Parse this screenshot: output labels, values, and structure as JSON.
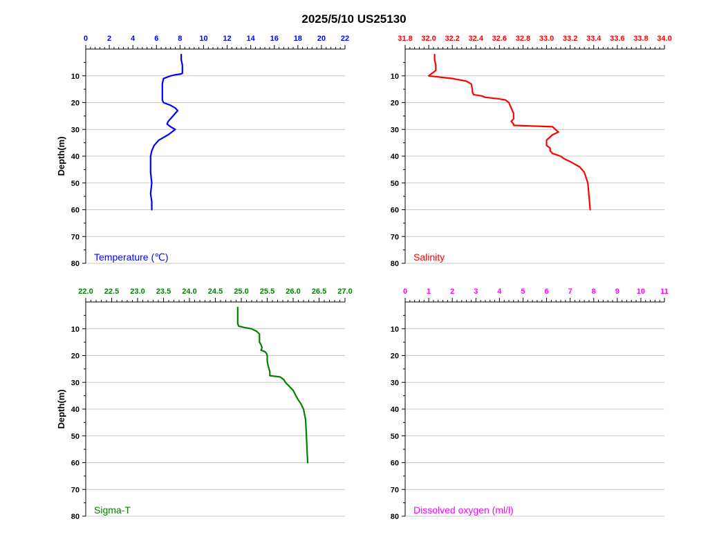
{
  "title": "2025/5/10  US25130",
  "chart_data": [
    {
      "type": "line",
      "label": "Temperature (℃)",
      "color": "#0000ff",
      "ylabel": "Depth(m)",
      "y_inverted": true,
      "ylim": [
        0,
        80
      ],
      "y_ticks": [
        10,
        20,
        30,
        40,
        50,
        60,
        70,
        80
      ],
      "xlim": [
        0,
        22
      ],
      "x_ticks": [
        0,
        2,
        4,
        6,
        8,
        10,
        12,
        14,
        16,
        18,
        20,
        22
      ],
      "grid": true,
      "series": [
        {
          "x": [
            8.1,
            8.1,
            8.2,
            8.2,
            8.2,
            8.1,
            7.6,
            7.2,
            6.6,
            6.5,
            6.5,
            6.5,
            6.6,
            7.2,
            7.6,
            7.8,
            7.6,
            7.4,
            7.2,
            7.0,
            6.9,
            7.2,
            7.6,
            7.0,
            6.2,
            5.8,
            5.6,
            5.5,
            5.5,
            5.5,
            5.6,
            5.5,
            5.6,
            5.6
          ],
          "y": [
            2,
            4,
            6,
            8,
            9,
            9.3,
            9.6,
            10,
            11,
            13,
            16,
            19,
            20,
            21,
            22,
            23,
            24,
            25,
            26,
            27,
            28,
            29,
            30,
            32,
            34,
            36,
            38,
            40,
            43,
            46,
            50,
            54,
            57,
            60
          ]
        }
      ]
    },
    {
      "type": "line",
      "label": "Salinity",
      "color": "#ff0000",
      "ylabel": "",
      "y_inverted": true,
      "ylim": [
        0,
        80
      ],
      "y_ticks": [
        10,
        20,
        30,
        40,
        50,
        60,
        70,
        80
      ],
      "xlim": [
        31.8,
        34.0
      ],
      "x_ticks": [
        31.8,
        32.0,
        32.2,
        32.4,
        32.6,
        32.8,
        33.0,
        33.2,
        33.4,
        33.6,
        33.8,
        34.0
      ],
      "grid": true,
      "series": [
        {
          "x": [
            32.05,
            32.05,
            32.06,
            32.06,
            32.03,
            32.0,
            32.2,
            32.32,
            32.36,
            32.37,
            32.37,
            32.38,
            32.45,
            32.48,
            32.58,
            32.65,
            32.68,
            32.7,
            32.72,
            32.72,
            32.7,
            32.72,
            32.72,
            33.05,
            33.1,
            33.05,
            33.0,
            33.0,
            33.03,
            33.03,
            33.05,
            33.12,
            33.15,
            33.2,
            33.28,
            33.32,
            33.35,
            33.36,
            33.37
          ],
          "y": [
            2,
            4,
            6,
            8,
            9,
            10,
            11,
            12,
            13,
            15,
            16,
            17,
            17.5,
            18,
            18.5,
            19,
            20,
            22,
            24,
            26,
            27,
            28,
            28.5,
            29,
            31,
            32,
            34,
            36,
            37,
            38,
            39,
            40,
            41,
            42,
            44,
            46,
            50,
            55,
            60
          ]
        }
      ]
    },
    {
      "type": "line",
      "label": "Sigma-T",
      "color": "#008000",
      "ylabel": "Depth(m)",
      "y_inverted": true,
      "ylim": [
        0,
        80
      ],
      "y_ticks": [
        10,
        20,
        30,
        40,
        50,
        60,
        70,
        80
      ],
      "xlim": [
        22.0,
        27.0
      ],
      "x_ticks": [
        22.0,
        22.5,
        23.0,
        23.5,
        24.0,
        24.5,
        25.0,
        25.5,
        26.0,
        26.5,
        27.0
      ],
      "grid": true,
      "series": [
        {
          "x": [
            24.93,
            24.93,
            24.93,
            24.93,
            24.95,
            25.05,
            25.2,
            25.3,
            25.35,
            25.35,
            25.38,
            25.4,
            25.38,
            25.45,
            25.48,
            25.5,
            25.5,
            25.52,
            25.55,
            25.55,
            25.75,
            25.82,
            25.85,
            26.0,
            26.08,
            26.15,
            26.2,
            26.22,
            26.24,
            26.25,
            26.26,
            26.27,
            26.28
          ],
          "y": [
            2,
            4,
            6,
            8,
            9,
            9.5,
            10,
            11,
            12,
            15,
            16,
            17,
            18,
            18.5,
            19,
            20,
            22,
            24,
            26,
            27.5,
            28,
            29,
            30,
            33,
            36,
            38,
            40,
            42,
            44,
            48,
            52,
            56,
            60
          ]
        }
      ]
    },
    {
      "type": "line",
      "label": "Dissolved oxygen (ml/l)",
      "color": "#ff00ff",
      "ylabel": "",
      "y_inverted": true,
      "ylim": [
        0,
        80
      ],
      "y_ticks": [
        10,
        20,
        30,
        40,
        50,
        60,
        70,
        80
      ],
      "xlim": [
        0,
        11
      ],
      "x_ticks": [
        0,
        1,
        2,
        3,
        4,
        5,
        6,
        7,
        8,
        9,
        10,
        11
      ],
      "grid": true,
      "series": []
    }
  ]
}
